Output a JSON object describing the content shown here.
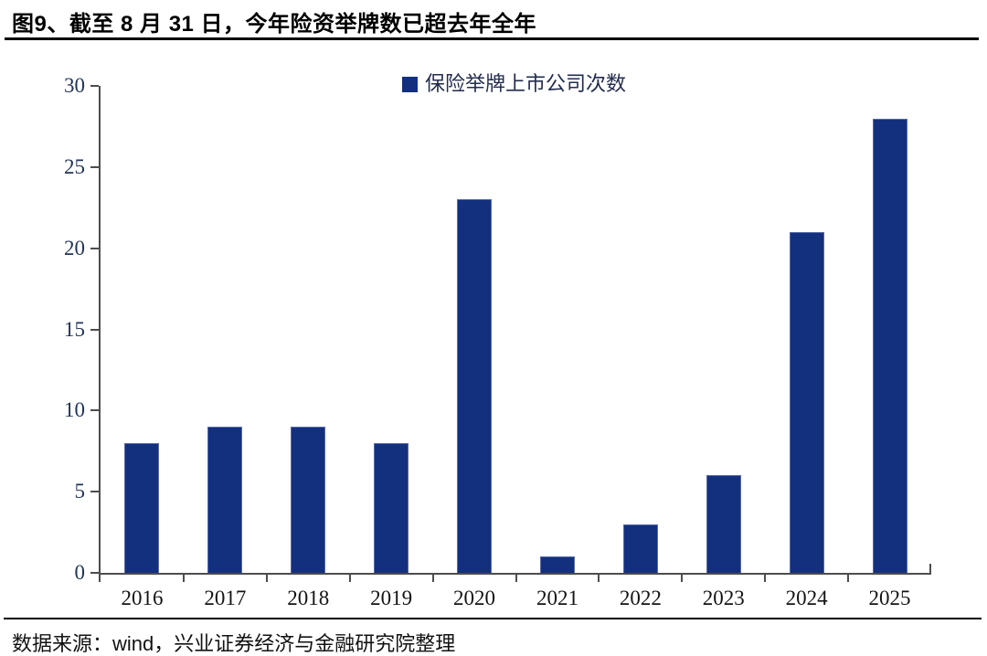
{
  "title": "图9、截至 8 月 31 日，今年险资举牌数已超去年全年",
  "legend": {
    "label": "保险举牌上市公司次数",
    "swatch_color": "#13307E"
  },
  "footer": {
    "source_text": "数据来源：wind，兴业证券经济与金融研究院整理"
  },
  "colors": {
    "bar": "#13307E",
    "bar_edge": "#5a6ba8",
    "axis": "#4d4d4d",
    "title_text": "#000000",
    "ylabel_text": "#223457",
    "xlabel_text": "#141414"
  },
  "chart_data": {
    "type": "bar",
    "title": "图9、截至 8 月 31 日，今年险资举牌数已超去年全年",
    "series_name": "保险举牌上市公司次数",
    "categories": [
      "2016",
      "2017",
      "2018",
      "2019",
      "2020",
      "2021",
      "2022",
      "2023",
      "2024",
      "2025"
    ],
    "values": [
      8,
      9,
      9,
      8,
      23,
      1,
      3,
      6,
      21,
      28
    ],
    "xlabel": "",
    "ylabel": "",
    "ylim": [
      0,
      30
    ],
    "yticks": [
      0,
      5,
      10,
      15,
      20,
      25,
      30
    ],
    "grid": false,
    "legend_position": "top-center"
  }
}
